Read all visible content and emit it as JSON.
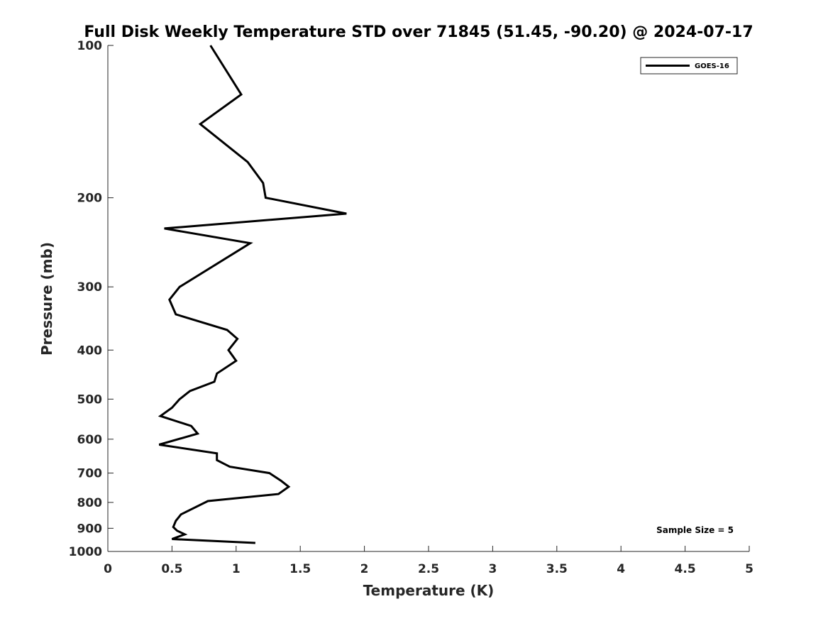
{
  "chart_data": {
    "type": "line",
    "title": "Full Disk Weekly Temperature STD over 71845 (51.45, -90.20) @ 2024-07-17",
    "xlabel": "Temperature (K)",
    "ylabel": "Pressure (mb)",
    "xlim": [
      0,
      5
    ],
    "ylim": [
      1000,
      100
    ],
    "y_scale": "log",
    "y_inverted": true,
    "x_ticks": [
      "0",
      "0.5",
      "1",
      "1.5",
      "2",
      "2.5",
      "3",
      "3.5",
      "4",
      "4.5",
      "5"
    ],
    "y_ticks": [
      "100",
      "200",
      "300",
      "400",
      "500",
      "600",
      "700",
      "800",
      "900",
      "1000"
    ],
    "grid": false,
    "legend_position": "top-right",
    "annotation": "Sample Size = 5",
    "series": [
      {
        "name": "GOES-16",
        "color": "#000000",
        "points": [
          {
            "x": 0.8,
            "y": 100
          },
          {
            "x": 1.04,
            "y": 125
          },
          {
            "x": 0.72,
            "y": 143
          },
          {
            "x": 1.09,
            "y": 170
          },
          {
            "x": 1.21,
            "y": 187
          },
          {
            "x": 1.23,
            "y": 200
          },
          {
            "x": 1.86,
            "y": 215
          },
          {
            "x": 0.44,
            "y": 230
          },
          {
            "x": 1.11,
            "y": 246
          },
          {
            "x": 0.56,
            "y": 300
          },
          {
            "x": 0.48,
            "y": 318
          },
          {
            "x": 0.53,
            "y": 340
          },
          {
            "x": 0.93,
            "y": 365
          },
          {
            "x": 1.01,
            "y": 380
          },
          {
            "x": 0.94,
            "y": 400
          },
          {
            "x": 1.0,
            "y": 420
          },
          {
            "x": 0.85,
            "y": 445
          },
          {
            "x": 0.83,
            "y": 462
          },
          {
            "x": 0.64,
            "y": 482
          },
          {
            "x": 0.56,
            "y": 500
          },
          {
            "x": 0.5,
            "y": 520
          },
          {
            "x": 0.41,
            "y": 540
          },
          {
            "x": 0.65,
            "y": 565
          },
          {
            "x": 0.7,
            "y": 585
          },
          {
            "x": 0.4,
            "y": 615
          },
          {
            "x": 0.85,
            "y": 640
          },
          {
            "x": 0.85,
            "y": 660
          },
          {
            "x": 0.95,
            "y": 680
          },
          {
            "x": 1.26,
            "y": 700
          },
          {
            "x": 1.35,
            "y": 725
          },
          {
            "x": 1.41,
            "y": 745
          },
          {
            "x": 1.33,
            "y": 770
          },
          {
            "x": 0.78,
            "y": 795
          },
          {
            "x": 0.57,
            "y": 845
          },
          {
            "x": 0.53,
            "y": 870
          },
          {
            "x": 0.51,
            "y": 895
          },
          {
            "x": 0.54,
            "y": 910
          },
          {
            "x": 0.6,
            "y": 925
          },
          {
            "x": 0.5,
            "y": 945
          },
          {
            "x": 1.15,
            "y": 962
          }
        ]
      }
    ]
  }
}
